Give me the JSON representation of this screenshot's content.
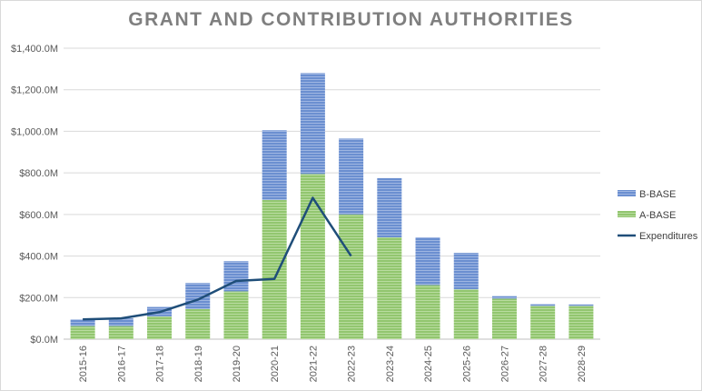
{
  "chart_data": {
    "type": "bar",
    "title": "GRANT AND CONTRIBUTION AUTHORITIES",
    "stacked": true,
    "categories": [
      "2015-16",
      "2016-17",
      "2017-18",
      "2018-19",
      "2019-20",
      "2020-21",
      "2021-22",
      "2022-23",
      "2023-24",
      "2024-25",
      "2025-26",
      "2026-27",
      "2027-28",
      "2028-29"
    ],
    "series": [
      {
        "name": "A-BASE",
        "kind": "bar",
        "color": "#92c66f",
        "values": [
          63,
          63,
          110,
          145,
          230,
          670,
          795,
          600,
          490,
          260,
          240,
          195,
          160,
          160
        ]
      },
      {
        "name": "B-BASE",
        "kind": "bar",
        "color": "#6b8fd0",
        "values": [
          32,
          37,
          45,
          125,
          145,
          335,
          485,
          365,
          285,
          230,
          175,
          12,
          8,
          7
        ]
      },
      {
        "name": "Expenditures",
        "kind": "line",
        "color": "#1f4e79",
        "values": [
          95,
          100,
          130,
          190,
          280,
          290,
          680,
          400,
          null,
          null,
          null,
          null,
          null,
          null
        ]
      }
    ],
    "ylim": [
      0,
      1400
    ],
    "yticks": [
      0,
      200,
      400,
      600,
      800,
      1000,
      1200,
      1400
    ],
    "ytick_labels": [
      "$0.0M",
      "$200.0M",
      "$400.0M",
      "$600.0M",
      "$800.0M",
      "$1,000.0M",
      "$1,200.0M",
      "$1,400.0M"
    ],
    "legend": [
      "B-BASE",
      "A-BASE",
      "Expenditures"
    ],
    "legend_position": "right",
    "grid": true
  }
}
